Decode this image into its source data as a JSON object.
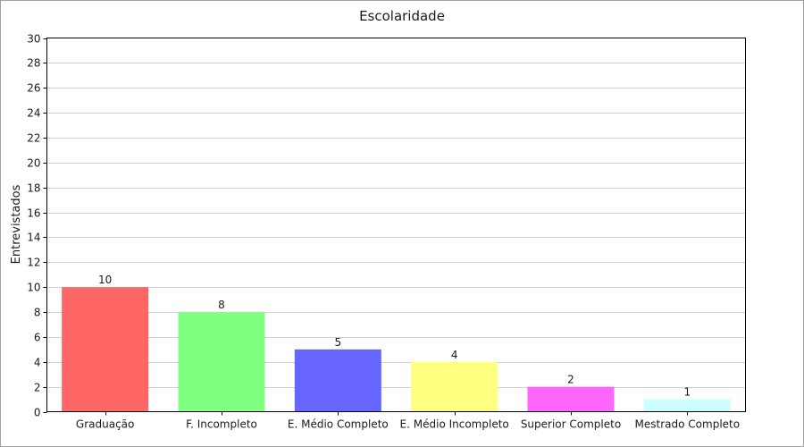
{
  "chart_data": {
    "type": "bar",
    "title": "Escolaridade",
    "xlabel": "",
    "ylabel": "Entrevistados",
    "ylim": [
      0,
      30
    ],
    "yticks": [
      0,
      2,
      4,
      6,
      8,
      10,
      12,
      14,
      16,
      18,
      20,
      22,
      24,
      26,
      28,
      30
    ],
    "grid": true,
    "legend": false,
    "categories": [
      "Graduação",
      "F. Incompleto",
      "E. Médio Completo",
      "E. Médio Incompleto",
      "Superior Completo",
      "Mestrado Completo"
    ],
    "values": [
      10,
      8,
      5,
      4,
      2,
      1
    ],
    "colors": [
      "#ff6666",
      "#80ff80",
      "#6666ff",
      "#ffff80",
      "#ff66ff",
      "#ccffff"
    ]
  }
}
